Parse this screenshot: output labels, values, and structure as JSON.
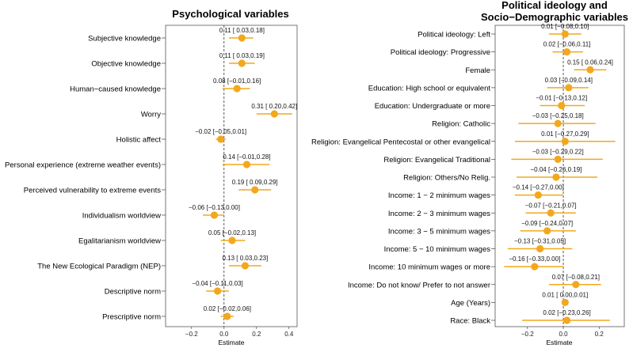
{
  "figure": {
    "accent_color": "#f2a81d",
    "frame_color": "#555555",
    "zero_line_color": "#333333"
  },
  "chart_data": [
    {
      "type": "forest",
      "title": "Psychological variables",
      "xlabel": "Estimate",
      "xlim": [
        -0.36,
        0.45
      ],
      "xticks": [
        -0.2,
        0.0,
        0.2,
        0.4
      ],
      "xtick_labels": [
        "−0.2",
        "0.0",
        "0.2",
        "0.4"
      ],
      "rows": [
        {
          "label": "Subjective knowledge",
          "estimate": 0.11,
          "low": 0.03,
          "high": 0.18,
          "text": "0.11 [ 0.03,0.18]"
        },
        {
          "label": "Objective knowledge",
          "estimate": 0.11,
          "low": 0.03,
          "high": 0.19,
          "text": "0.11 [ 0.03,0.19]"
        },
        {
          "label": "Human−caused knowledge",
          "estimate": 0.08,
          "low": -0.01,
          "high": 0.16,
          "text": "0.08 [−0.01,0.16]"
        },
        {
          "label": "Worry",
          "estimate": 0.31,
          "low": 0.2,
          "high": 0.42,
          "text": "0.31 [ 0.20,0.42]"
        },
        {
          "label": "Holistic affect",
          "estimate": -0.02,
          "low": -0.05,
          "high": 0.01,
          "text": "−0.02 [−0.05,0.01]"
        },
        {
          "label": "Personal experience (extreme weather events)",
          "estimate": 0.14,
          "low": -0.01,
          "high": 0.28,
          "text": "0.14 [−0.01,0.28]"
        },
        {
          "label": "Perceived vulnerability to extreme events",
          "estimate": 0.19,
          "low": 0.09,
          "high": 0.29,
          "text": "0.19 [ 0.09,0.29]"
        },
        {
          "label": "Individualism worldview",
          "estimate": -0.06,
          "low": -0.13,
          "high": 0.0,
          "text": "−0.06 [−0.13,0.00]"
        },
        {
          "label": "Egalitarianism worldview",
          "estimate": 0.05,
          "low": -0.02,
          "high": 0.13,
          "text": "0.05 [−0.02,0.13]"
        },
        {
          "label": "The New Ecological Paradigm (NEP)",
          "estimate": 0.13,
          "low": 0.03,
          "high": 0.23,
          "text": "0.13 [ 0.03,0.23]"
        },
        {
          "label": "Descriptive norm",
          "estimate": -0.04,
          "low": -0.11,
          "high": 0.03,
          "text": "−0.04 [−0.11,0.03]"
        },
        {
          "label": "Prescriptive norm",
          "estimate": 0.02,
          "low": -0.02,
          "high": 0.06,
          "text": "0.02 [−0.02,0.06]"
        }
      ]
    },
    {
      "type": "forest",
      "title": "Political ideology and\nSocio−Demographic variables",
      "title_lines": [
        "Political ideology and",
        "Socio−Demographic variables"
      ],
      "xlabel": "Estimate",
      "xlim": [
        -0.38,
        0.34
      ],
      "xticks": [
        -0.2,
        0.0,
        0.2
      ],
      "xtick_labels": [
        "−0.2",
        "0.0",
        "0.2"
      ],
      "rows": [
        {
          "label": "Political ideology: Left",
          "estimate": 0.01,
          "low": -0.08,
          "high": 0.1,
          "text": "0.01 [−0.08,0.10]"
        },
        {
          "label": "Political ideology: Progressive",
          "estimate": 0.02,
          "low": -0.06,
          "high": 0.11,
          "text": "0.02 [−0.06,0.11]"
        },
        {
          "label": "Female",
          "estimate": 0.15,
          "low": 0.06,
          "high": 0.24,
          "text": "0.15 [ 0.06,0.24]"
        },
        {
          "label": "Education: High school or equivalent",
          "estimate": 0.03,
          "low": -0.09,
          "high": 0.14,
          "text": "0.03 [−0.09,0.14]"
        },
        {
          "label": "Education: Undergraduate or more",
          "estimate": -0.01,
          "low": -0.13,
          "high": 0.12,
          "text": "−0.01 [−0.13,0.12]"
        },
        {
          "label": "Religion: Catholic",
          "estimate": -0.03,
          "low": -0.25,
          "high": 0.18,
          "text": "−0.03 [−0.25,0.18]"
        },
        {
          "label": "Religion: Evangelical Pentecostal or other evangelical",
          "estimate": 0.01,
          "low": -0.27,
          "high": 0.29,
          "text": "0.01 [−0.27,0.29]"
        },
        {
          "label": "Religion: Evangelical Traditional",
          "estimate": -0.03,
          "low": -0.29,
          "high": 0.22,
          "text": "−0.03 [−0.29,0.22]"
        },
        {
          "label": "Religion: Others/No Relig.",
          "estimate": -0.04,
          "low": -0.26,
          "high": 0.19,
          "text": "−0.04 [−0.26,0.19]"
        },
        {
          "label": "Income: 1 − 2 minimum wages",
          "estimate": -0.14,
          "low": -0.27,
          "high": 0.0,
          "text": "−0.14 [−0.27,0.00]"
        },
        {
          "label": "Income: 2 − 3 minimum wages",
          "estimate": -0.07,
          "low": -0.21,
          "high": 0.07,
          "text": "−0.07 [−0.21,0.07]"
        },
        {
          "label": "Income: 3 − 5 minimum wages",
          "estimate": -0.09,
          "low": -0.24,
          "high": 0.07,
          "text": "−0.09 [−0.24,0.07]"
        },
        {
          "label": "Income: 5 − 10 minimum wages",
          "estimate": -0.13,
          "low": -0.31,
          "high": 0.05,
          "text": "−0.13 [−0.31,0.05]"
        },
        {
          "label": "Income: 10 minimum wages or more",
          "estimate": -0.16,
          "low": -0.33,
          "high": 0.0,
          "text": "−0.16 [−0.33,0.00]"
        },
        {
          "label": "Income: Do not know/ Prefer to not answer",
          "estimate": 0.07,
          "low": -0.08,
          "high": 0.21,
          "text": "0.07 [−0.08,0.21]"
        },
        {
          "label": "Age (Years)",
          "estimate": 0.01,
          "low": 0.0,
          "high": 0.01,
          "text": "0.01 [ 0.00,0.01]"
        },
        {
          "label": "Race: Black",
          "estimate": 0.02,
          "low": -0.23,
          "high": 0.26,
          "text": "0.02 [−0.23,0.26]"
        }
      ]
    }
  ]
}
